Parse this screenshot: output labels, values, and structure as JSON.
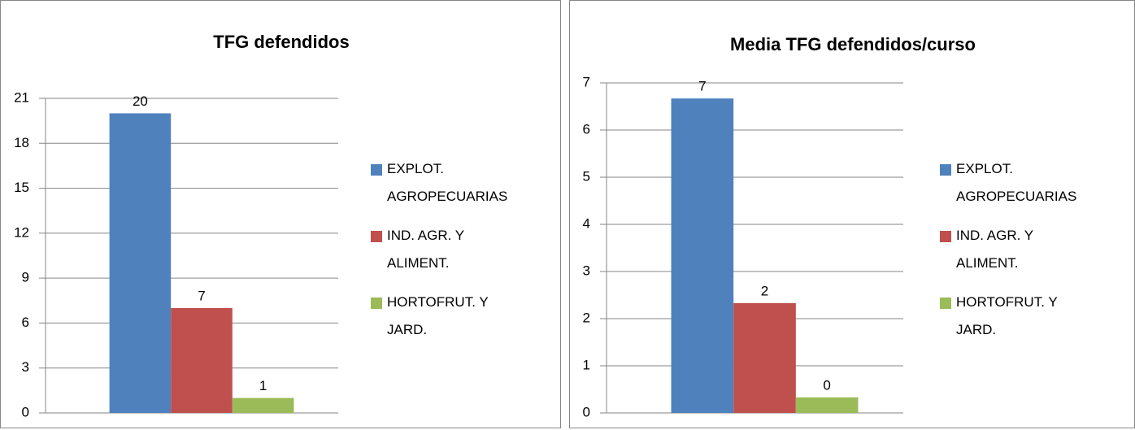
{
  "chart_data": [
    {
      "type": "bar",
      "title": "TFG defendidos",
      "series": [
        {
          "name": "EXPLOT. AGROPECUARIAS",
          "color": "#4f81bd",
          "values": [
            20
          ]
        },
        {
          "name": "IND. AGR. Y ALIMENT.",
          "color": "#c0504d",
          "values": [
            7
          ]
        },
        {
          "name": "HORTOFRUT. Y JARD.",
          "color": "#9bbb59",
          "values": [
            1
          ]
        }
      ],
      "ylim": [
        0,
        21
      ],
      "yticks": [
        0,
        3,
        6,
        9,
        12,
        15,
        18,
        21
      ],
      "grid": true,
      "legend": "right"
    },
    {
      "type": "bar",
      "title": "Media TFG defendidos/curso",
      "series": [
        {
          "name": "EXPLOT. AGROPECUARIAS",
          "color": "#4f81bd",
          "values": [
            6.67
          ],
          "value_labels": [
            "7"
          ]
        },
        {
          "name": "IND. AGR. Y ALIMENT.",
          "color": "#c0504d",
          "values": [
            2.33
          ],
          "value_labels": [
            "2"
          ]
        },
        {
          "name": "HORTOFRUT. Y JARD.",
          "color": "#9bbb59",
          "values": [
            0.33
          ],
          "value_labels": [
            "0"
          ]
        }
      ],
      "ylim": [
        0,
        7
      ],
      "yticks": [
        0,
        1,
        2,
        3,
        4,
        5,
        6,
        7
      ],
      "grid": true,
      "legend": "right"
    }
  ]
}
